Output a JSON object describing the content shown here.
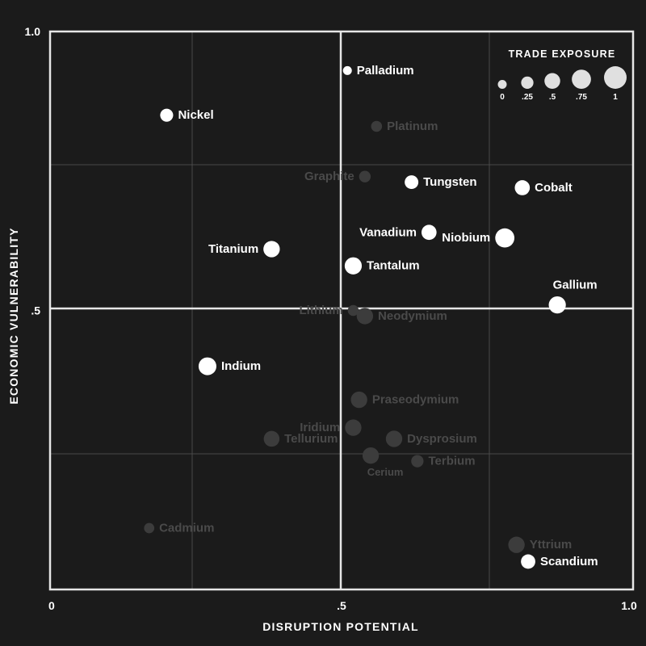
{
  "chart_data": {
    "type": "scatter",
    "xlabel": "DISRUPTION POTENTIAL",
    "ylabel": "ECONOMIC VULNERABILITY",
    "xlim": [
      0,
      1
    ],
    "ylim": [
      0,
      1
    ],
    "x_ticks": [
      {
        "value": 0,
        "label": "0"
      },
      {
        "value": 0.5,
        "label": ".5"
      },
      {
        "value": 1,
        "label": "1.0"
      }
    ],
    "y_ticks": [
      {
        "value": 0.5,
        "label": ".5"
      },
      {
        "value": 1,
        "label": "1.0"
      }
    ],
    "size_legend": {
      "title": "TRADE EXPOSURE",
      "entries": [
        {
          "value": 0,
          "label": "0"
        },
        {
          "value": 0.25,
          "label": ".25"
        },
        {
          "value": 0.5,
          "label": ".5"
        },
        {
          "value": 0.75,
          "label": ".75"
        },
        {
          "value": 1,
          "label": "1"
        }
      ]
    },
    "grid": true,
    "colors": {
      "background": "#1b1b1b",
      "highlight": "#ffffff",
      "muted_point": "#3c3c3c",
      "muted_label": "#4a4a4a",
      "legend_circle": "#e0e0e0",
      "frame": "#e6e6e6",
      "grid": "#4a4a4a"
    },
    "points": [
      {
        "name": "Palladium",
        "x": 0.51,
        "y": 0.93,
        "size": 0.0,
        "highlight": true,
        "label_side": "right"
      },
      {
        "name": "Nickel",
        "x": 0.2,
        "y": 0.85,
        "size": 0.3,
        "highlight": true,
        "label_side": "right"
      },
      {
        "name": "Platinum",
        "x": 0.56,
        "y": 0.83,
        "size": 0.15,
        "highlight": false,
        "label_side": "right"
      },
      {
        "name": "Graphite",
        "x": 0.54,
        "y": 0.74,
        "size": 0.2,
        "highlight": false,
        "label_side": "left"
      },
      {
        "name": "Tungsten",
        "x": 0.62,
        "y": 0.73,
        "size": 0.35,
        "highlight": true,
        "label_side": "right"
      },
      {
        "name": "Cobalt",
        "x": 0.81,
        "y": 0.72,
        "size": 0.45,
        "highlight": true,
        "label_side": "right"
      },
      {
        "name": "Vanadium",
        "x": 0.65,
        "y": 0.64,
        "size": 0.45,
        "highlight": true,
        "label_side": "left"
      },
      {
        "name": "Niobium",
        "x": 0.78,
        "y": 0.63,
        "size": 0.75,
        "highlight": true,
        "label_side": "left"
      },
      {
        "name": "Titanium",
        "x": 0.38,
        "y": 0.61,
        "size": 0.55,
        "highlight": true,
        "label_side": "left"
      },
      {
        "name": "Tantalum",
        "x": 0.52,
        "y": 0.58,
        "size": 0.6,
        "highlight": true,
        "label_side": "right"
      },
      {
        "name": "Gallium",
        "x": 0.87,
        "y": 0.51,
        "size": 0.6,
        "highlight": true,
        "label_side": "top"
      },
      {
        "name": "Lithium",
        "x": 0.52,
        "y": 0.5,
        "size": 0.15,
        "highlight": false,
        "label_side": "left"
      },
      {
        "name": "Neodymium",
        "x": 0.54,
        "y": 0.49,
        "size": 0.55,
        "highlight": false,
        "label_side": "right"
      },
      {
        "name": "Indium",
        "x": 0.27,
        "y": 0.4,
        "size": 0.65,
        "highlight": true,
        "label_side": "right"
      },
      {
        "name": "Praseodymium",
        "x": 0.53,
        "y": 0.34,
        "size": 0.55,
        "highlight": false,
        "label_side": "right"
      },
      {
        "name": "Iridium",
        "x": 0.52,
        "y": 0.29,
        "size": 0.55,
        "highlight": false,
        "label_side": "left"
      },
      {
        "name": "Tellurium",
        "x": 0.38,
        "y": 0.27,
        "size": 0.5,
        "highlight": false,
        "label_side": "right"
      },
      {
        "name": "Dysprosium",
        "x": 0.59,
        "y": 0.27,
        "size": 0.55,
        "highlight": false,
        "label_side": "right"
      },
      {
        "name": "Cerium",
        "x": 0.55,
        "y": 0.24,
        "size": 0.55,
        "highlight": false,
        "label_side": "bottom"
      },
      {
        "name": "Terbium",
        "x": 0.63,
        "y": 0.23,
        "size": 0.25,
        "highlight": false,
        "label_side": "right"
      },
      {
        "name": "Cadmium",
        "x": 0.17,
        "y": 0.11,
        "size": 0.1,
        "highlight": false,
        "label_side": "right"
      },
      {
        "name": "Yttrium",
        "x": 0.8,
        "y": 0.08,
        "size": 0.55,
        "highlight": false,
        "label_side": "right"
      },
      {
        "name": "Scandium",
        "x": 0.82,
        "y": 0.05,
        "size": 0.4,
        "highlight": true,
        "label_side": "right"
      }
    ]
  }
}
